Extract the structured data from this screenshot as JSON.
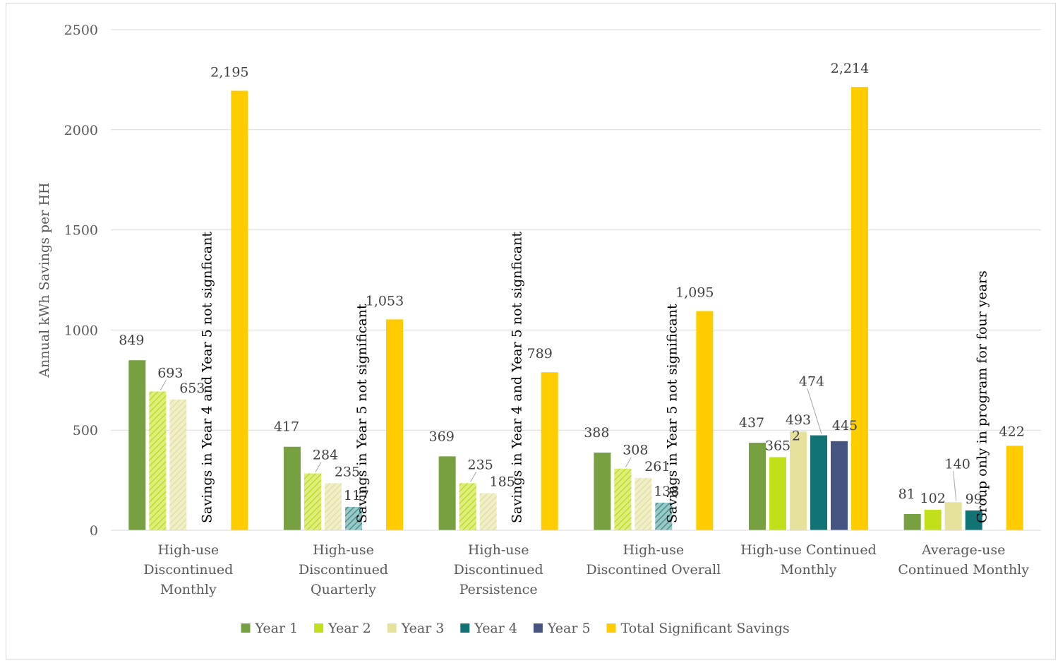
{
  "chart_data": {
    "type": "bar",
    "title": "",
    "xlabel": "",
    "ylabel": "Annual kWh Savings per HH",
    "ylim": [
      0,
      2500
    ],
    "yticks": [
      "0",
      "500",
      "1000",
      "1500",
      "2000",
      "2500"
    ],
    "grid": true,
    "legend_position": "bottom",
    "categories": [
      [
        "High-use",
        "Discontinued",
        "Monthly"
      ],
      [
        "High-use",
        "Discontinued",
        "Quarterly"
      ],
      [
        "High-use",
        "Discontinued",
        "Persistence"
      ],
      [
        "High-use",
        "Discontined Overall"
      ],
      [
        "High-use Continued",
        "Monthly"
      ],
      [
        "Average-use",
        "Continued Monthly"
      ]
    ],
    "series": [
      {
        "name": "Year 1",
        "color": "#77a040",
        "pattern": "solid",
        "values": [
          849,
          417,
          369,
          388,
          437,
          81
        ],
        "labels": [
          "849",
          "417",
          "369",
          "388",
          "437",
          "81"
        ]
      },
      {
        "name": "Year 2",
        "color": "#c3df1a",
        "pattern": "mixed",
        "values": [
          693,
          284,
          235,
          308,
          365,
          102
        ],
        "labels": [
          "693",
          "284",
          "235",
          "308",
          "365",
          "102"
        ]
      },
      {
        "name": "Year 3",
        "color": "#e6e29b",
        "pattern": "mixed",
        "values": [
          653,
          235,
          185,
          261,
          493,
          140
        ],
        "labels": [
          "653",
          "235",
          "185",
          "261",
          "493",
          "140"
        ]
      },
      {
        "name": "Year 4",
        "color": "#117373",
        "pattern": "mixed",
        "values": [
          null,
          117,
          null,
          138,
          474,
          99
        ],
        "labels": [
          "",
          "117",
          "",
          "138",
          "474",
          "99"
        ]
      },
      {
        "name": "Year 5",
        "color": "#465481",
        "pattern": "solid",
        "values": [
          null,
          null,
          null,
          null,
          445,
          null
        ],
        "labels": [
          "",
          "",
          "",
          "",
          "445",
          ""
        ]
      },
      {
        "name": "Total Significant Savings",
        "color": "#ffcc00",
        "pattern": "solid",
        "values": [
          2195,
          1053,
          789,
          1095,
          2214,
          422
        ],
        "labels": [
          "2,195",
          "1,053",
          "789",
          "1,095",
          "2,214",
          "422"
        ]
      }
    ],
    "annotations": [
      "Savings in Year 4 and Year 5 not signficant",
      "Savings in Year 5 not significant",
      "Savings in Year 4 and Year 5 not signficant",
      "Savings in Year 5 not significant",
      "",
      "Group only in program for four years"
    ],
    "superscript_label": "2"
  }
}
